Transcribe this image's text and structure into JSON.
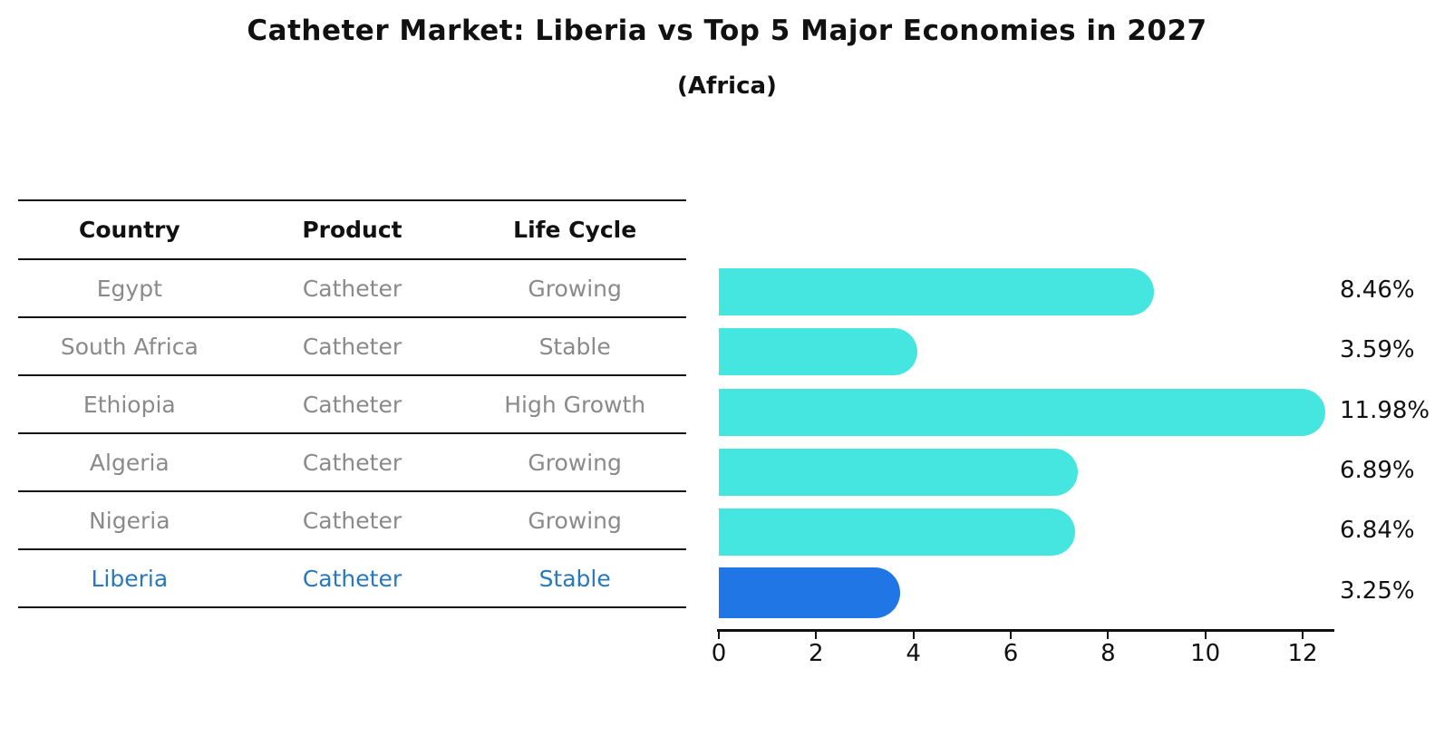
{
  "title": "Catheter Market: Liberia vs Top 5 Major Economies in 2027",
  "subtitle": "(Africa)",
  "table": {
    "headers": [
      "Country",
      "Product",
      "Life Cycle"
    ],
    "rows": [
      {
        "country": "Egypt",
        "product": "Catheter",
        "life_cycle": "Growing",
        "highlight": false
      },
      {
        "country": "South Africa",
        "product": "Catheter",
        "life_cycle": "Stable",
        "highlight": false
      },
      {
        "country": "Ethiopia",
        "product": "Catheter",
        "life_cycle": "High Growth",
        "highlight": false
      },
      {
        "country": "Algeria",
        "product": "Catheter",
        "life_cycle": "Growing",
        "highlight": false
      },
      {
        "country": "Nigeria",
        "product": "Catheter",
        "life_cycle": "Growing",
        "highlight": false
      },
      {
        "country": "Liberia",
        "product": "Catheter",
        "life_cycle": "Stable",
        "highlight": true
      }
    ]
  },
  "chart_data": {
    "type": "bar",
    "orientation": "horizontal",
    "title": "Catheter Market: Liberia vs Top 5 Major Economies in 2027 (Africa)",
    "categories": [
      "Egypt",
      "South Africa",
      "Ethiopia",
      "Algeria",
      "Nigeria",
      "Liberia"
    ],
    "values": [
      8.46,
      3.59,
      11.98,
      6.89,
      6.84,
      3.25
    ],
    "value_labels": [
      "8.46%",
      "3.59%",
      "11.98%",
      "6.89%",
      "6.84%",
      "3.25%"
    ],
    "x_ticks": [
      0,
      2,
      4,
      6,
      8,
      10,
      12
    ],
    "xlim": [
      0,
      12.65
    ],
    "grid": false,
    "legend": false,
    "bar_color": "#45E6E0",
    "highlight_color": "#2176E6",
    "highlight_index": 5,
    "highlight_style": "dotted-border"
  },
  "colors": {
    "background": "#ffffff",
    "axis": "#111111",
    "table_body_text": "#8a8a8a",
    "table_header_text": "#111111",
    "highlight_text": "#2878BE",
    "bar_fill": "#45E6E0",
    "highlight_bar_fill": "#2176E6"
  }
}
